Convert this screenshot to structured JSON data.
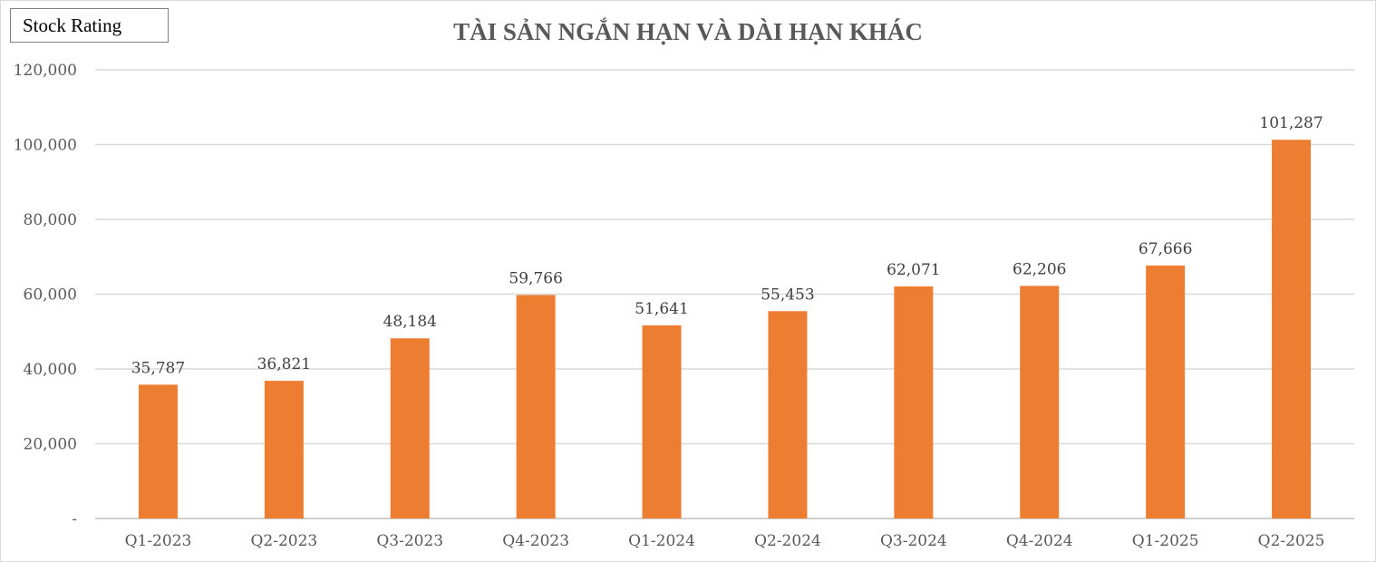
{
  "badge": {
    "label": "Stock Rating"
  },
  "chart_data": {
    "type": "bar",
    "title": "TÀI SẢN NGẮN HẠN VÀ DÀI HẠN KHÁC",
    "xlabel": "",
    "ylabel": "",
    "categories": [
      "Q1-2023",
      "Q2-2023",
      "Q3-2023",
      "Q4-2023",
      "Q1-2024",
      "Q2-2024",
      "Q3-2024",
      "Q4-2024",
      "Q1-2025",
      "Q2-2025"
    ],
    "values": [
      35787,
      36821,
      48184,
      59766,
      51641,
      55453,
      62071,
      62206,
      67666,
      101287
    ],
    "data_labels": [
      "35,787",
      "36,821",
      "48,184",
      "59,766",
      "51,641",
      "55,453",
      "62,071",
      "62,206",
      "67,666",
      "101,287"
    ],
    "y_ticks": [
      0,
      20000,
      40000,
      60000,
      80000,
      100000,
      120000
    ],
    "y_tick_labels": [
      "-",
      "20,000",
      "40,000",
      "60,000",
      "80,000",
      "100,000",
      "120,000"
    ],
    "ylim": [
      0,
      120000
    ],
    "grid": true,
    "legend": "none",
    "colors": {
      "bar": "#ED7D31",
      "grid": "#d9d9d9",
      "axis": "#bfbfbf"
    }
  }
}
